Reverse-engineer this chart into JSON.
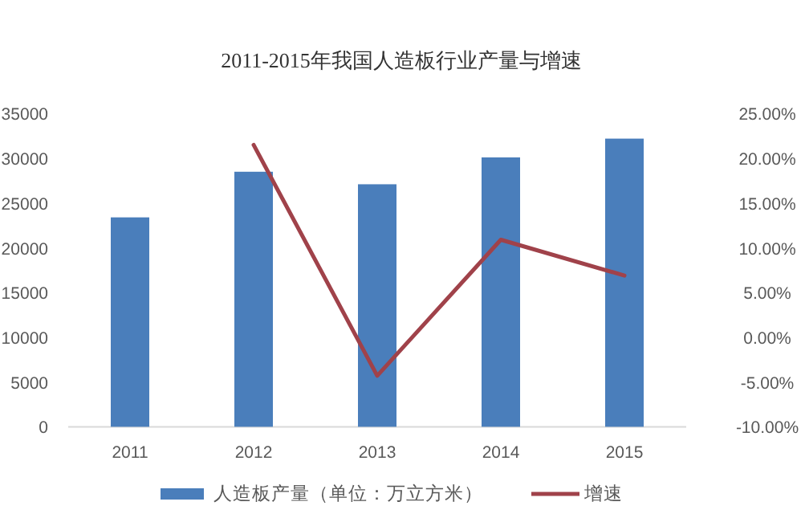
{
  "chart_data": {
    "type": "bar",
    "title": "2011-2015年我国人造板行业产量与增速",
    "categories": [
      "2011",
      "2012",
      "2013",
      "2014",
      "2015"
    ],
    "series": [
      {
        "name": "人造板产量（单位：万立方米）",
        "color": "#4a7ebb",
        "values": [
          23400,
          28500,
          27100,
          30100,
          32200
        ]
      },
      {
        "name": "增速",
        "type": "line",
        "axis": "y2",
        "color": "#a0424a",
        "values": [
          null,
          21.5,
          -4.3,
          10.9,
          6.9
        ]
      }
    ],
    "ylim": [
      0,
      35000
    ],
    "yticks": [
      0,
      5000,
      10000,
      15000,
      20000,
      25000,
      30000,
      35000
    ],
    "y2lim": [
      -10,
      25
    ],
    "y2ticks": [
      {
        "value": -10,
        "label": "-10.00%"
      },
      {
        "value": -5,
        "label": "-5.00%"
      },
      {
        "value": 0,
        "label": "0.00%"
      },
      {
        "value": 5,
        "label": "5.00%"
      },
      {
        "value": 10,
        "label": "10.00%"
      },
      {
        "value": 15,
        "label": "15.00%"
      },
      {
        "value": 20,
        "label": "20.00%"
      },
      {
        "value": 25,
        "label": "25.00%"
      }
    ],
    "legend": "bottom"
  }
}
